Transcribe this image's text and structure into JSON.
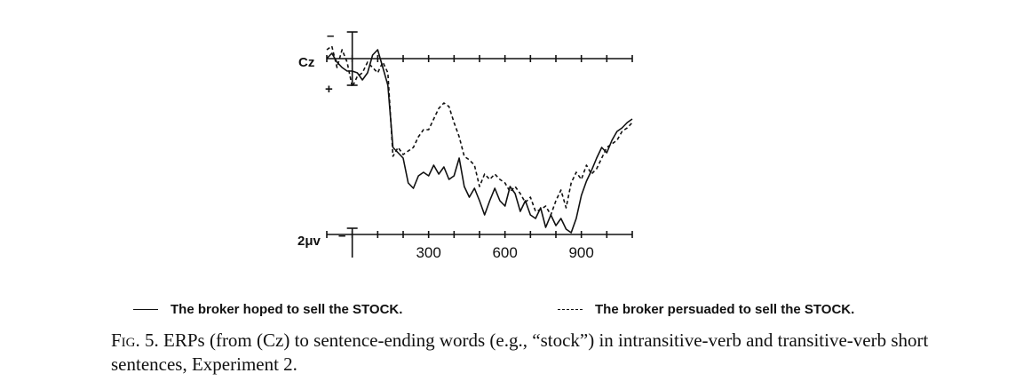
{
  "chart_data": {
    "type": "line",
    "electrode": "Cz",
    "polarity": {
      "negative": "–",
      "positive": "+"
    },
    "scale_label": "2μv",
    "xlim": [
      -100,
      1100
    ],
    "x_ticks_minor": [
      -100,
      0,
      100,
      200,
      300,
      400,
      500,
      600,
      700,
      800,
      900,
      1000,
      1100
    ],
    "x_tick_labels": [
      "300",
      "600",
      "900"
    ],
    "ylim": [
      -2.5,
      11
    ],
    "series": [
      {
        "name": "The broker hoped to sell the STOCK.",
        "style": "solid",
        "color": "#111111",
        "x": [
          -100,
          -80,
          -60,
          -40,
          -20,
          0,
          20,
          40,
          60,
          80,
          100,
          120,
          140,
          160,
          180,
          200,
          220,
          240,
          260,
          280,
          300,
          320,
          340,
          360,
          380,
          400,
          420,
          440,
          460,
          480,
          500,
          520,
          540,
          560,
          580,
          600,
          620,
          640,
          660,
          680,
          700,
          720,
          740,
          760,
          780,
          800,
          820,
          840,
          860,
          880,
          900,
          920,
          940,
          960,
          980,
          1000,
          1020,
          1040,
          1060,
          1080,
          1100
        ],
        "values": [
          0.0,
          -0.3,
          0.2,
          0.5,
          0.7,
          0.7,
          0.8,
          1.2,
          0.8,
          -0.2,
          -0.5,
          0.5,
          1.5,
          5.0,
          5.3,
          5.6,
          7.0,
          7.3,
          6.6,
          6.4,
          6.6,
          6.0,
          6.5,
          6.1,
          6.8,
          6.6,
          5.6,
          7.2,
          7.8,
          7.3,
          8.0,
          8.8,
          8.0,
          7.3,
          8.0,
          8.3,
          7.2,
          7.6,
          8.6,
          8.0,
          8.8,
          9.0,
          8.4,
          9.5,
          8.8,
          9.4,
          9.0,
          9.6,
          9.8,
          9.0,
          7.7,
          6.9,
          6.3,
          5.6,
          5.0,
          5.3,
          4.6,
          4.1,
          3.9,
          3.6,
          3.4
        ]
      },
      {
        "name": "The broker persuaded to sell the STOCK.",
        "style": "dashed",
        "color": "#111111",
        "x": [
          -100,
          -80,
          -60,
          -40,
          -20,
          0,
          20,
          40,
          60,
          80,
          100,
          120,
          140,
          160,
          180,
          200,
          220,
          240,
          260,
          280,
          300,
          320,
          340,
          360,
          380,
          400,
          420,
          440,
          460,
          480,
          500,
          520,
          540,
          560,
          580,
          600,
          620,
          640,
          660,
          680,
          700,
          720,
          740,
          760,
          780,
          800,
          820,
          840,
          860,
          880,
          900,
          920,
          940,
          960,
          980,
          1000,
          1020,
          1040,
          1060,
          1080,
          1100
        ],
        "values": [
          -0.5,
          -0.7,
          0.5,
          -0.5,
          0.2,
          1.6,
          1.0,
          0.8,
          0.2,
          0.5,
          0.8,
          0.2,
          0.8,
          5.5,
          5.0,
          5.4,
          5.2,
          5.0,
          4.4,
          4.0,
          4.0,
          3.4,
          2.8,
          2.5,
          2.7,
          3.6,
          4.4,
          5.5,
          5.7,
          6.0,
          7.2,
          6.5,
          6.8,
          6.5,
          6.8,
          7.0,
          7.5,
          7.2,
          7.6,
          8.1,
          7.8,
          8.6,
          8.5,
          8.3,
          8.8,
          8.0,
          7.4,
          8.4,
          7.0,
          6.4,
          6.8,
          6.0,
          6.5,
          6.2,
          5.6,
          5.0,
          4.8,
          4.6,
          4.1,
          3.9,
          3.6
        ]
      }
    ]
  },
  "caption": {
    "label": "Fig. 5.",
    "text": "ERPs (from (Cz) to sentence-ending words (e.g., “stock”) in intransitive-verb and transitive-verb short sentences, Experiment 2."
  }
}
